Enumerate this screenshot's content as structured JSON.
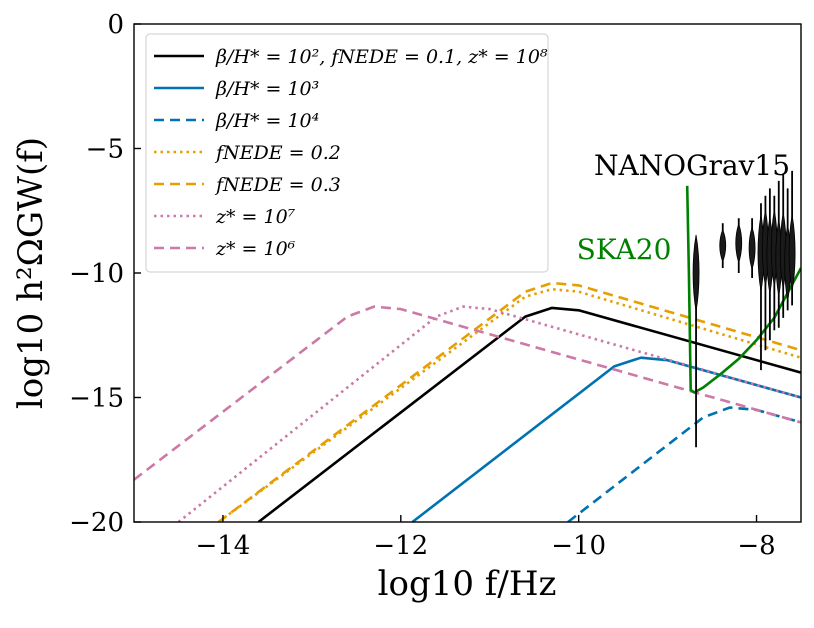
{
  "chart_data": {
    "type": "line",
    "xlabel": "log10 f/Hz",
    "ylabel": "log10 h²ΩGW(f)",
    "xlim": [
      -15,
      -7.5
    ],
    "ylim": [
      -20,
      0
    ],
    "xticks": [
      -14,
      -12,
      -10,
      -8
    ],
    "xtick_labels": [
      "−14",
      "−12",
      "−10",
      "−8"
    ],
    "yticks": [
      0,
      -5,
      -10,
      -15,
      -20
    ],
    "ytick_labels": [
      "0",
      "−5",
      "−10",
      "−15",
      "−20"
    ],
    "legend_position": "top-left",
    "series": [
      {
        "name": "β/H* = 10², fNEDE = 0.1, z* = 10⁸",
        "color": "#000000",
        "style": "solid",
        "x": [
          -13.6,
          -10.6,
          -10.3,
          -10.0,
          -7.5
        ],
        "y": [
          -20,
          -11.75,
          -11.4,
          -11.5,
          -14.0
        ]
      },
      {
        "name": "β/H* = 10³",
        "color": "#0072B2",
        "style": "solid",
        "x": [
          -11.87,
          -9.6,
          -9.3,
          -9.0,
          -7.5
        ],
        "y": [
          -20,
          -13.75,
          -13.4,
          -13.5,
          -15.0
        ]
      },
      {
        "name": "β/H* = 10⁴",
        "color": "#0072B2",
        "style": "dashed",
        "x": [
          -10.12,
          -8.6,
          -8.3,
          -8.0,
          -7.5
        ],
        "y": [
          -20,
          -15.8,
          -15.4,
          -15.5,
          -16.0
        ]
      },
      {
        "name": "fNEDE = 0.2",
        "color": "#E69F00",
        "style": "dotted",
        "x": [
          -14.05,
          -10.6,
          -10.3,
          -10.0,
          -7.5
        ],
        "y": [
          -20,
          -10.95,
          -10.65,
          -10.75,
          -13.4
        ]
      },
      {
        "name": "fNEDE = 0.3",
        "color": "#E69F00",
        "style": "dashed",
        "x": [
          -14.05,
          -10.6,
          -10.3,
          -10.0,
          -7.5
        ],
        "y": [
          -20,
          -10.75,
          -10.4,
          -10.5,
          -13.1
        ]
      },
      {
        "name": "z* = 10⁷",
        "color": "#CC79A7",
        "style": "dotted",
        "x": [
          -14.5,
          -11.6,
          -11.3,
          -11.0,
          -7.5
        ],
        "y": [
          -20,
          -11.75,
          -11.35,
          -11.45,
          -15.0
        ]
      },
      {
        "name": "z* = 10⁶",
        "color": "#CC79A7",
        "style": "dashed",
        "x": [
          -15.0,
          -12.6,
          -12.3,
          -12.0,
          -7.5
        ],
        "y": [
          -18.3,
          -11.75,
          -11.35,
          -11.45,
          -16.0
        ]
      }
    ],
    "ska20": {
      "label": "SKA20",
      "color": "#008000",
      "x": [
        -8.78,
        -8.76,
        -8.74,
        -8.7,
        -8.6,
        -8.4,
        -8.2,
        -8.0,
        -7.8,
        -7.5
      ],
      "y": [
        -6.5,
        -10.0,
        -14.7,
        -14.8,
        -14.6,
        -14.05,
        -13.45,
        -12.7,
        -11.8,
        -9.8
      ]
    },
    "nanograv15": {
      "label": "NANOGrav15",
      "color": "#000000",
      "points": [
        {
          "x": -8.68,
          "y": -10.0,
          "lo": -17.0,
          "hi": -8.8
        },
        {
          "x": -8.38,
          "y": -8.9,
          "lo": -9.8,
          "hi": -8.0
        },
        {
          "x": -8.2,
          "y": -8.8,
          "lo": -10.0,
          "hi": -7.8
        },
        {
          "x": -8.05,
          "y": -9.0,
          "lo": -10.2,
          "hi": -7.8
        },
        {
          "x": -7.95,
          "y": -9.2,
          "lo": -13.9,
          "hi": -7.2
        },
        {
          "x": -7.9,
          "y": -9.0,
          "lo": -13.1,
          "hi": -6.9
        },
        {
          "x": -7.85,
          "y": -9.3,
          "lo": -12.7,
          "hi": -6.6
        },
        {
          "x": -7.8,
          "y": -9.0,
          "lo": -12.3,
          "hi": -6.9
        },
        {
          "x": -7.75,
          "y": -9.4,
          "lo": -12.2,
          "hi": -6.3
        },
        {
          "x": -7.7,
          "y": -9.1,
          "lo": -11.8,
          "hi": -6.0
        },
        {
          "x": -7.65,
          "y": -9.6,
          "lo": -11.5,
          "hi": -6.6
        },
        {
          "x": -7.6,
          "y": -9.2,
          "lo": -11.3,
          "hi": -5.9
        }
      ]
    }
  }
}
